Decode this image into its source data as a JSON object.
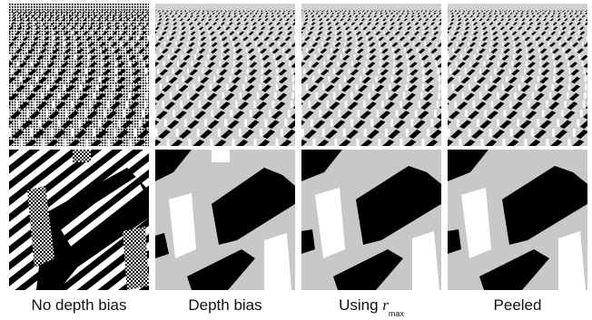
{
  "figure": {
    "captions": [
      {
        "text": "No depth bias"
      },
      {
        "text": "Depth bias"
      },
      {
        "prefix": "Using ",
        "var": "r",
        "sub": "max"
      },
      {
        "text": "Peeled"
      }
    ]
  },
  "colors": {
    "background": "#ffffff",
    "ground": "#c8c8c8",
    "shadow": "#000000",
    "lit": "#ffffff"
  }
}
